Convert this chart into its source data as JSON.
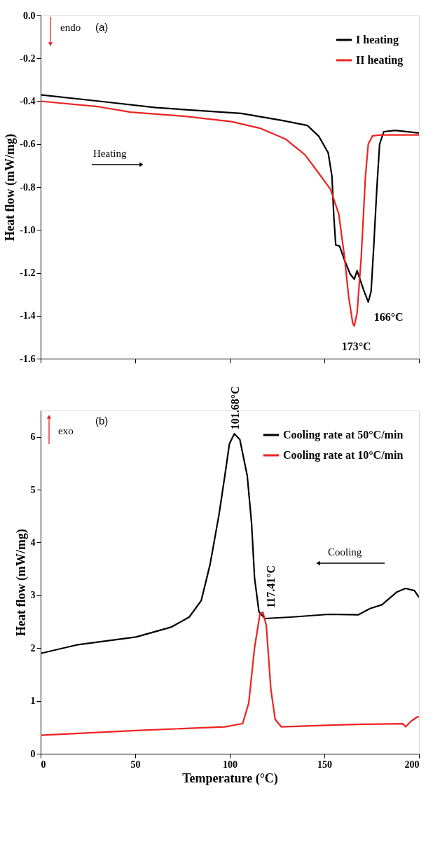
{
  "chart_data": [
    {
      "type": "line",
      "xlim": [
        0,
        200
      ],
      "xticks": [
        0,
        50,
        100,
        150,
        200
      ],
      "ylim": [
        -1.6,
        0.0
      ],
      "yticks": [
        {
          "value": -1.6,
          "label": "-1.6"
        },
        {
          "value": -1.4,
          "label": "-1.4"
        },
        {
          "value": -1.2,
          "label": "-1.2"
        },
        {
          "value": -1.0,
          "label": "-1.0"
        },
        {
          "value": -0.8,
          "label": "-0.8"
        },
        {
          "value": -0.6,
          "label": "-0.6"
        },
        {
          "value": -0.4,
          "label": "-0.4"
        },
        {
          "value": -0.2,
          "label": "-0.2"
        },
        {
          "value": 0.0,
          "label": "0.0"
        }
      ],
      "ylabel": "Heat flow (mW/mg)",
      "tick_labels": "y",
      "grid": false,
      "legend": "top right",
      "marker": "none",
      "line_style": "solid",
      "annotations": [
        "endo",
        "(a)",
        "Heating",
        {
          "text": "166°C",
          "x": 173.2,
          "y": -1.336
        },
        {
          "text": "173°C",
          "x": 165.8,
          "y": -1.448
        }
      ],
      "series": [
        {
          "name": "I heating",
          "color": "#000000",
          "x": [
            0,
            31,
            61,
            106,
            128,
            141,
            147,
            152,
            154,
            155,
            156,
            158,
            160.6,
            163.6,
            165.8,
            167.3,
            168.8,
            171,
            173.2,
            174.7,
            176.2,
            177.7,
            179.2,
            181.4,
            187.4,
            200
          ],
          "values": [
            -0.37,
            -0.4,
            -0.43,
            -0.457,
            -0.49,
            -0.513,
            -0.563,
            -0.64,
            -0.75,
            -0.94,
            -1.07,
            -1.075,
            -1.14,
            -1.205,
            -1.23,
            -1.19,
            -1.23,
            -1.286,
            -1.336,
            -1.286,
            -1.06,
            -0.81,
            -0.6,
            -0.542,
            -0.536,
            -0.548
          ]
        },
        {
          "name": "II heating",
          "color": "#ee2222",
          "x": [
            0,
            31,
            47.6,
            75.8,
            101,
            116,
            129.4,
            139.8,
            147.2,
            153.2,
            157.6,
            160.6,
            162.8,
            165,
            165.8,
            167.3,
            169.5,
            171.7,
            173.2,
            175.5,
            180,
            200
          ],
          "values": [
            -0.4,
            -0.426,
            -0.451,
            -0.47,
            -0.495,
            -0.526,
            -0.576,
            -0.65,
            -0.738,
            -0.81,
            -0.925,
            -1.124,
            -1.31,
            -1.436,
            -1.448,
            -1.386,
            -1.124,
            -0.75,
            -0.6,
            -0.561,
            -0.557,
            -0.557
          ]
        }
      ]
    },
    {
      "type": "line",
      "xlim": [
        0,
        200
      ],
      "xticks": [
        0,
        50,
        100,
        150,
        200
      ],
      "ylim": [
        0,
        6.5
      ],
      "yticks": [
        0,
        1,
        2,
        3,
        4,
        5,
        6
      ],
      "xlabel": "Temperature (°C)",
      "ylabel": "Heat flow (mW/mg)",
      "grid": false,
      "legend": "top right",
      "marker": "none",
      "line_style": "solid",
      "annotations": [
        "exo",
        "(b)",
        "Cooling",
        {
          "text": "101.68°C",
          "x": 102.4,
          "y": 6.06
        },
        {
          "text": "117.41°C",
          "x": 117.5,
          "y": 2.68
        }
      ],
      "series": [
        {
          "name": "Cooling rate at 50°C/min",
          "color": "#000000",
          "x": [
            0,
            19,
            50.4,
            69.2,
            78.6,
            84.9,
            89.6,
            94.3,
            97.4,
            99.8,
            102.4,
            105.3,
            109.2,
            111.5,
            113.1,
            115.4,
            118.6,
            133.4,
            152.2,
            167.9,
            174.1,
            180.4,
            188.2,
            192.9,
            197.6,
            200
          ],
          "values": [
            1.9,
            2.06,
            2.21,
            2.4,
            2.59,
            2.9,
            3.59,
            4.53,
            5.27,
            5.87,
            6.06,
            5.95,
            5.27,
            4.37,
            3.32,
            2.69,
            2.56,
            2.59,
            2.64,
            2.63,
            2.75,
            2.82,
            3.06,
            3.13,
            3.09,
            2.96
          ]
        },
        {
          "name": "Cooling rate at 10°C/min",
          "color": "#ee2222",
          "x": [
            0,
            50.4,
            97.4,
            106.8,
            110,
            113.1,
            115.9,
            117.5,
            119.3,
            121.7,
            124,
            127.2,
            160,
            191.4,
            192.9,
            196,
            199.2,
            200
          ],
          "values": [
            0.35,
            0.44,
            0.51,
            0.57,
            0.96,
            2.01,
            2.64,
            2.68,
            2.43,
            1.22,
            0.65,
            0.51,
            0.55,
            0.57,
            0.51,
            0.62,
            0.7,
            0.7
          ]
        }
      ]
    }
  ]
}
